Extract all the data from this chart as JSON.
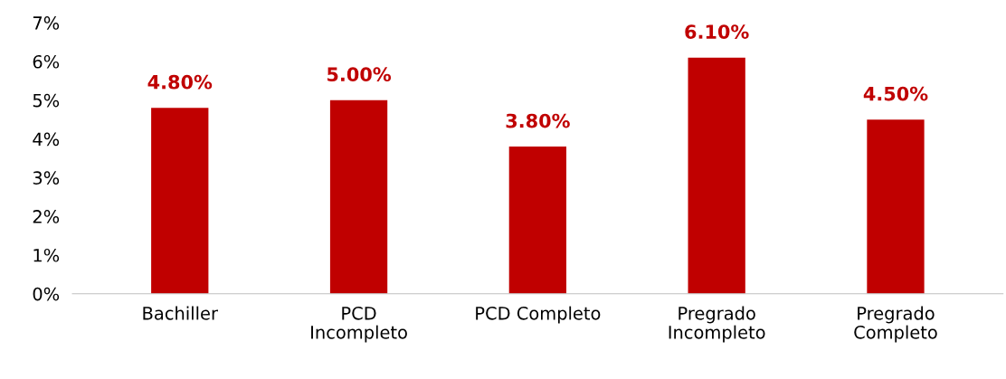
{
  "chart_data": {
    "type": "bar",
    "categories": [
      "Bachiller",
      "PCD\nIncompleto",
      "PCD Completo",
      "Pregrado\nIncompleto",
      "Pregrado\nCompleto"
    ],
    "values": [
      4.8,
      5.0,
      3.8,
      6.1,
      4.5
    ],
    "value_labels": [
      "4.80%",
      "5.00%",
      "3.80%",
      "6.10%",
      "4.50%"
    ],
    "color": "#c00000",
    "ylim": [
      0,
      7
    ],
    "yticks": [
      {
        "value": 0,
        "label": "0%"
      },
      {
        "value": 1,
        "label": "1%"
      },
      {
        "value": 2,
        "label": "2%"
      },
      {
        "value": 3,
        "label": "3%"
      },
      {
        "value": 4,
        "label": "4%"
      },
      {
        "value": 5,
        "label": "5%"
      },
      {
        "value": 6,
        "label": "6%"
      },
      {
        "value": 7,
        "label": "7%"
      }
    ],
    "grid": false,
    "legend": false
  }
}
